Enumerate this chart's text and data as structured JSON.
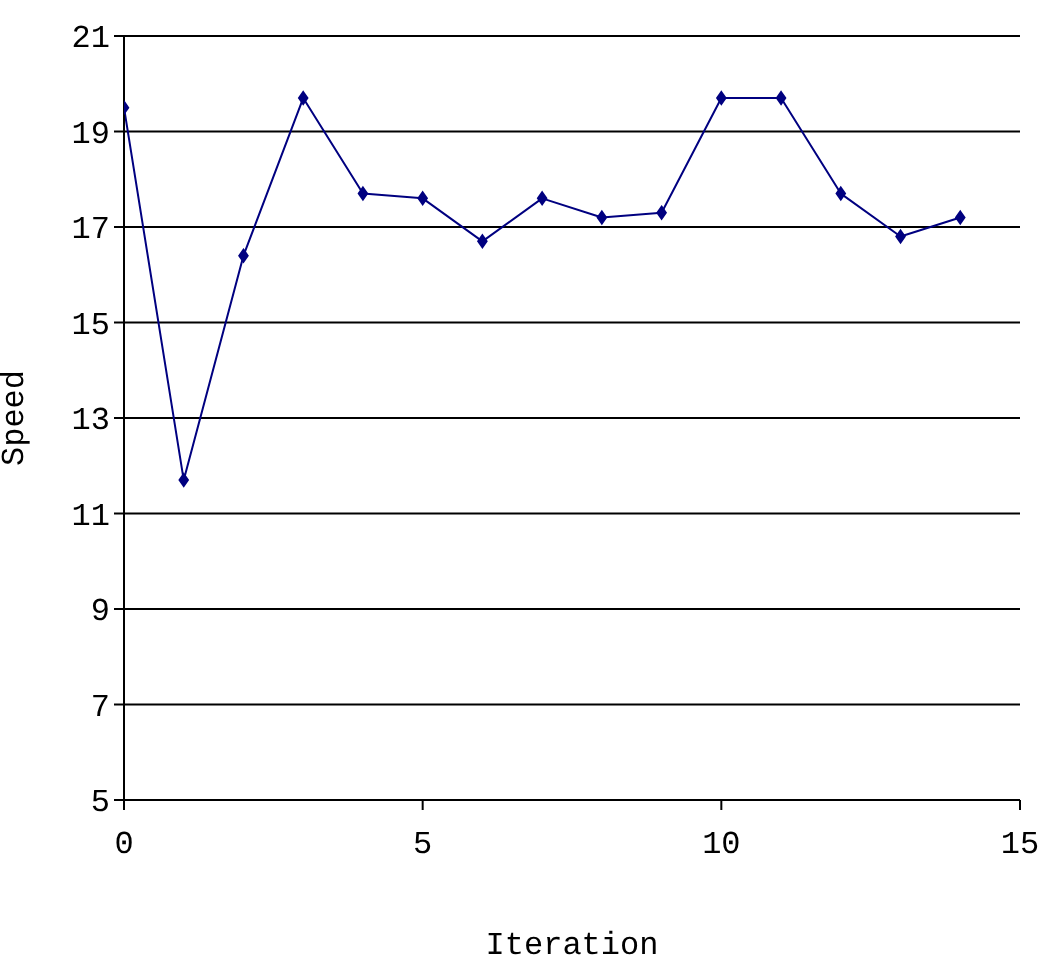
{
  "chart_data": {
    "type": "line",
    "xlabel": "Iteration",
    "ylabel": "Speed",
    "x": [
      0,
      1,
      2,
      3,
      4,
      5,
      6,
      7,
      8,
      9,
      10,
      11,
      12,
      13,
      14
    ],
    "series": [
      {
        "color": "#000080",
        "values": [
          19.5,
          11.7,
          16.4,
          19.7,
          17.7,
          17.6,
          16.7,
          17.6,
          17.2,
          17.3,
          19.7,
          19.7,
          17.7,
          16.8,
          17.2
        ]
      }
    ],
    "xlim": [
      0,
      15
    ],
    "xticks": [
      0,
      5,
      10,
      15
    ],
    "ylim": [
      5,
      21
    ],
    "yticks": [
      5,
      7,
      9,
      11,
      13,
      15,
      17,
      19,
      21
    ],
    "grid": "y",
    "marker": "diamond",
    "line_style": "solid",
    "legend": false
  }
}
